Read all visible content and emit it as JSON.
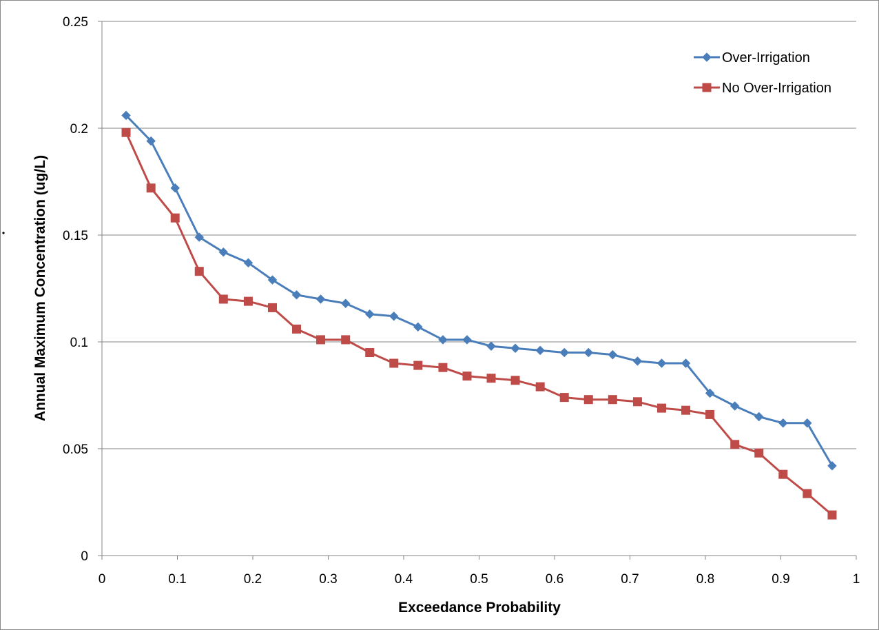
{
  "chart_data": {
    "type": "line",
    "title": "",
    "xlabel": "Exceedance Probability",
    "ylabel": "Annual Maximum Concentration (ug/L)",
    "xlim": [
      0,
      1
    ],
    "ylim": [
      0,
      0.25
    ],
    "xticks": [
      "0",
      "0.1",
      "0.2",
      "0.3",
      "0.4",
      "0.5",
      "0.6",
      "0.7",
      "0.8",
      "0.9",
      "1"
    ],
    "yticks": [
      "0",
      "0.05",
      "0.1",
      "0.15",
      "0.2",
      "0.25"
    ],
    "grid": "horizontal",
    "legend_position": "top-right",
    "x": [
      0.032,
      0.065,
      0.097,
      0.129,
      0.161,
      0.194,
      0.226,
      0.258,
      0.29,
      0.323,
      0.355,
      0.387,
      0.419,
      0.452,
      0.484,
      0.516,
      0.548,
      0.581,
      0.613,
      0.645,
      0.677,
      0.71,
      0.742,
      0.774,
      0.806,
      0.839,
      0.871,
      0.903,
      0.935,
      0.968
    ],
    "series": [
      {
        "name": "Over-Irrigation",
        "color": "#4A7EBB",
        "marker": "diamond",
        "values": [
          0.206,
          0.194,
          0.172,
          0.149,
          0.142,
          0.137,
          0.129,
          0.122,
          0.12,
          0.118,
          0.113,
          0.112,
          0.107,
          0.101,
          0.101,
          0.098,
          0.097,
          0.096,
          0.095,
          0.095,
          0.094,
          0.091,
          0.09,
          0.09,
          0.076,
          0.07,
          0.065,
          0.062,
          0.062,
          0.042
        ]
      },
      {
        "name": "No Over-Irrigation",
        "color": "#BE4B48",
        "marker": "square",
        "values": [
          0.198,
          0.172,
          0.158,
          0.133,
          0.12,
          0.119,
          0.116,
          0.106,
          0.101,
          0.101,
          0.095,
          0.09,
          0.089,
          0.088,
          0.084,
          0.083,
          0.082,
          0.079,
          0.074,
          0.073,
          0.073,
          0.072,
          0.069,
          0.068,
          0.066,
          0.052,
          0.048,
          0.038,
          0.029,
          0.019
        ]
      }
    ]
  }
}
